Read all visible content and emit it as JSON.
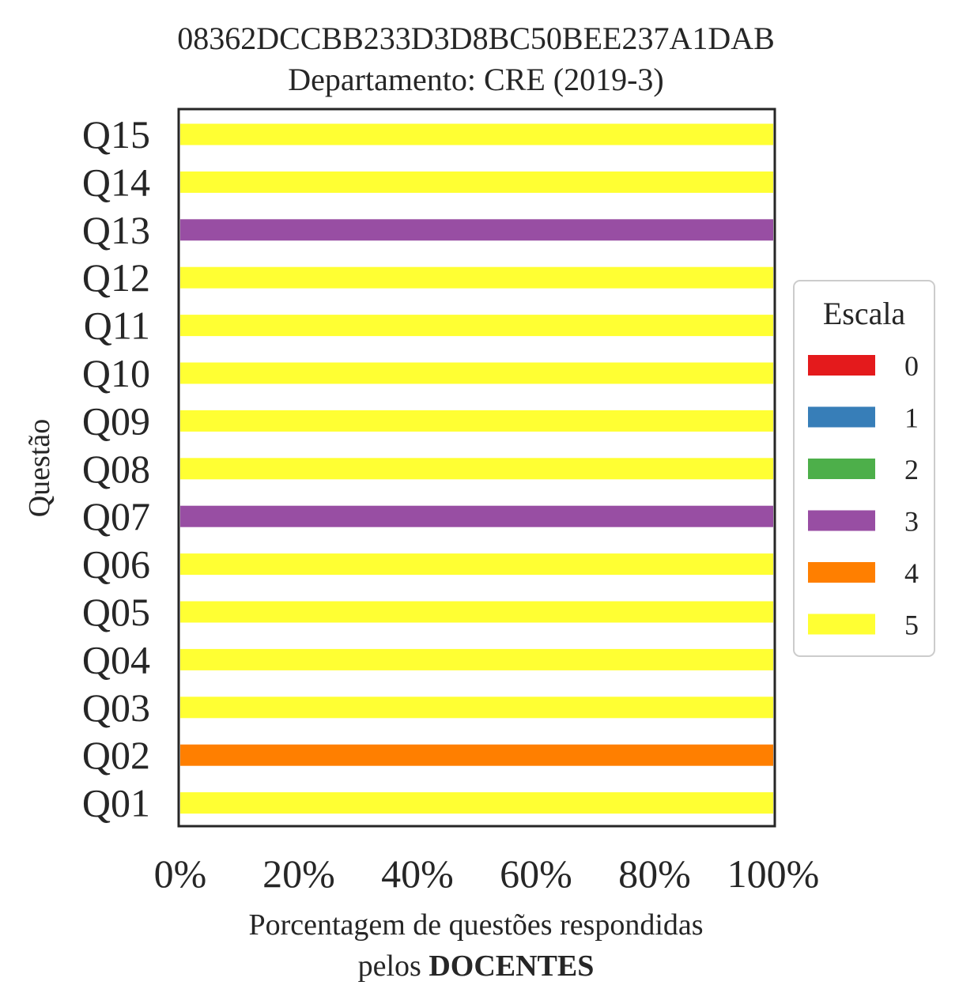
{
  "chart_data": {
    "type": "bar",
    "orientation": "horizontal",
    "stacked": true,
    "title": "08362DCCBB233D3D8BC50BEE237A1DAB",
    "subtitle": "Departamento: CRE (2019-3)",
    "ylabel": "Questão",
    "xlabel": "Porcentagem de questões respondidas",
    "xlabel_line2_prefix": "pelos ",
    "xlabel_line2_bold": "DOCENTES",
    "xlim": [
      0,
      100
    ],
    "xticks": [
      "0%",
      "20%",
      "40%",
      "60%",
      "80%",
      "100%"
    ],
    "categories": [
      "Q01",
      "Q02",
      "Q03",
      "Q04",
      "Q05",
      "Q06",
      "Q07",
      "Q08",
      "Q09",
      "Q10",
      "Q11",
      "Q12",
      "Q13",
      "Q14",
      "Q15"
    ],
    "legend": {
      "title": "Escala",
      "position": "center-right"
    },
    "series": [
      {
        "name": "0",
        "color": "#e41a1c",
        "values": [
          0,
          0,
          0,
          0,
          0,
          0,
          0,
          0,
          0,
          0,
          0,
          0,
          0,
          0,
          0
        ]
      },
      {
        "name": "1",
        "color": "#377eb8",
        "values": [
          0,
          0,
          0,
          0,
          0,
          0,
          0,
          0,
          0,
          0,
          0,
          0,
          0,
          0,
          0
        ]
      },
      {
        "name": "2",
        "color": "#4daf4a",
        "values": [
          0,
          0,
          0,
          0,
          0,
          0,
          0,
          0,
          0,
          0,
          0,
          0,
          0,
          0,
          0
        ]
      },
      {
        "name": "3",
        "color": "#984ea3",
        "values": [
          0,
          0,
          0,
          0,
          0,
          0,
          100,
          0,
          0,
          0,
          0,
          0,
          100,
          0,
          0
        ]
      },
      {
        "name": "4",
        "color": "#ff7f00",
        "values": [
          0,
          100,
          0,
          0,
          0,
          0,
          0,
          0,
          0,
          0,
          0,
          0,
          0,
          0,
          0
        ]
      },
      {
        "name": "5",
        "color": "#ffff33",
        "values": [
          100,
          0,
          100,
          100,
          100,
          100,
          0,
          100,
          100,
          100,
          100,
          100,
          0,
          100,
          100
        ]
      }
    ]
  }
}
